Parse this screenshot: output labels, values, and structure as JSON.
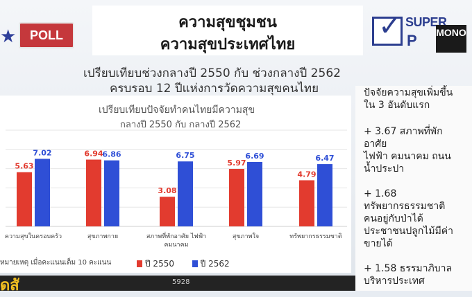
{
  "header": {
    "poll_label": "POLL",
    "title_line1": "ความสุขชุมชน",
    "title_line2": "ความสุขประเทศไทย",
    "compare_line1": "เปรียบเทียบช่วงกลางปี 2550 กับ ช่วงกลางปี 2562",
    "compare_line2": "ครบรอบ 12 ปีแห่งการวัดความสุขคนไทย"
  },
  "logo": {
    "text_top": "SUPER",
    "text_bottom": "P",
    "badge": "MONO"
  },
  "chart_data": {
    "type": "bar",
    "title": "เปรียบเทียบปัจจัยทำคนไทยมีความสุข",
    "subtitle": "กลางปี 2550 กับ กลางปี 2562",
    "categories": [
      "ความสุขในครอบครัว",
      "สุขภาพกาย",
      "สภาพที่พักอาศัย ไฟฟ้า คมนาคม",
      "สุขภาพใจ",
      "ทรัพยากรธรรมชาติ"
    ],
    "series": [
      {
        "name": "ปี 2550",
        "color": "#e23b2f",
        "values": [
          5.63,
          6.94,
          3.08,
          5.97,
          4.79
        ]
      },
      {
        "name": "ปี 2562",
        "color": "#2f4fd6",
        "values": [
          7.02,
          6.86,
          6.75,
          6.69,
          6.47
        ]
      }
    ],
    "ylim": [
      0,
      10
    ],
    "grid": true,
    "legend_position": "bottom",
    "note": "หมายเหตุ เมื่อคะแนนเต็ม 10 คะแนน"
  },
  "sidebar": {
    "lines": [
      "ปัจจัยความสุขเพิ่มขึ้น",
      "ใน 3 อันดับแรก",
      "+ 3.67 สภาพที่พัก",
      "อาศัย",
      "ไฟฟ้า คมนาคม ถนน",
      "น้ำประปา",
      "+ 1.68",
      "ทรัพยากรธรรมชาติ",
      "คนอยู่กับป่าได้",
      "ประชาชนปลูกไม้มีค่า",
      "ขายได้",
      "+ 1.58 ธรรมาภิบาล",
      "บริหารประเทศ"
    ]
  },
  "ticker": {
    "text": "5928"
  }
}
